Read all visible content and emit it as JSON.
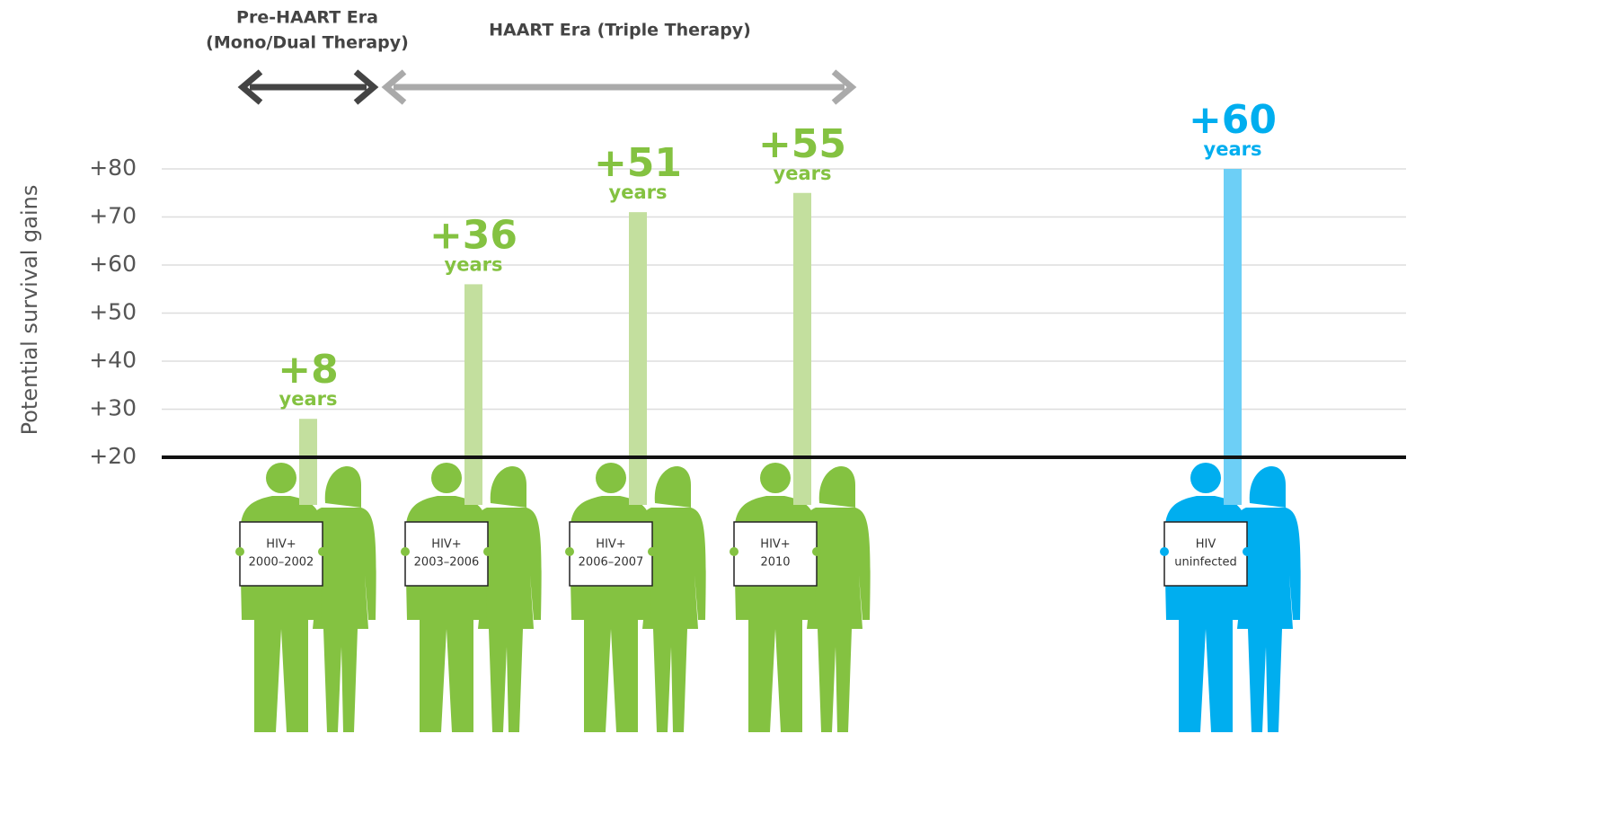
{
  "chart_data": {
    "type": "bar",
    "eras": [
      {
        "lines": [
          "Pre-HAART Era",
          "(Mono/Dual Therapy)"
        ]
      },
      {
        "lines": [
          "HAART Era (Triple Therapy)"
        ]
      }
    ],
    "ylabel": "Potential survival gains",
    "categories": [
      [
        "HIV+",
        "2000–2002"
      ],
      [
        "HIV+",
        "2003–2006"
      ],
      [
        "HIV+",
        "2006–2007"
      ],
      [
        "HIV+",
        "2010"
      ],
      [
        "HIV",
        "uninfected"
      ]
    ],
    "values": [
      28,
      56,
      71,
      75,
      80
    ],
    "annotations": [
      {
        "text": "+8",
        "sub": "years"
      },
      {
        "text": "+36",
        "sub": "years"
      },
      {
        "text": "+51",
        "sub": "years"
      },
      {
        "text": "+55",
        "sub": "years"
      },
      {
        "text": "+60",
        "sub": "years"
      }
    ],
    "colors": [
      "#c3df9e",
      "#c3df9e",
      "#c3df9e",
      "#c3df9e",
      "#6dcff6"
    ],
    "figure_colors": [
      "#84c241",
      "#84c241",
      "#84c241",
      "#84c241",
      "#00aeef"
    ],
    "ylim": [
      20,
      80
    ],
    "yticks": [
      {
        "value": 20,
        "label": "+20"
      },
      {
        "value": 30,
        "label": "+30"
      },
      {
        "value": 40,
        "label": "+40"
      },
      {
        "value": 50,
        "label": "+50"
      },
      {
        "value": 60,
        "label": "+60"
      },
      {
        "value": 70,
        "label": "+70"
      },
      {
        "value": 80,
        "label": "+80"
      }
    ],
    "grid": true
  }
}
